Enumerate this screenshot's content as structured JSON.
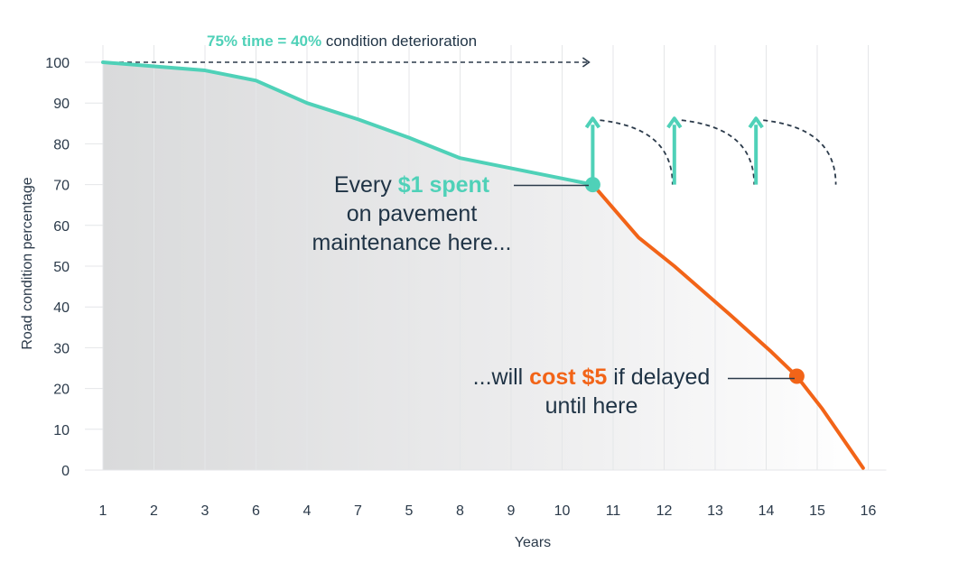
{
  "chart_data": {
    "type": "line",
    "title": "",
    "xlabel": "Years",
    "ylabel": "Road condition percentage",
    "x_tick_labels": [
      "1",
      "2",
      "3",
      "6",
      "4",
      "7",
      "5",
      "8",
      "9",
      "10",
      "11",
      "12",
      "13",
      "14",
      "15",
      "16"
    ],
    "y_ticks": [
      0,
      10,
      20,
      30,
      40,
      50,
      60,
      70,
      80,
      90,
      100
    ],
    "ylim": [
      0,
      100
    ],
    "grid": "vertical",
    "series": [
      {
        "color": "#4fd1b8",
        "points": [
          [
            1,
            100
          ],
          [
            3,
            98
          ],
          [
            4,
            95.5
          ],
          [
            5,
            90
          ],
          [
            6,
            86
          ],
          [
            7,
            81.5
          ],
          [
            8,
            76.5
          ],
          [
            10.6,
            70
          ]
        ]
      },
      {
        "color": "#f26418",
        "points": [
          [
            10.6,
            70
          ],
          [
            11.5,
            57
          ],
          [
            12.2,
            50
          ],
          [
            13.3,
            38
          ],
          [
            14.1,
            29
          ],
          [
            14.6,
            23
          ],
          [
            15.1,
            15
          ],
          [
            15.9,
            0.5
          ]
        ]
      }
    ],
    "markers": [
      {
        "x": 10.6,
        "y": 70,
        "color": "#4fd1b8"
      },
      {
        "x": 14.6,
        "y": 23,
        "color": "#f26418"
      }
    ],
    "top_annotation": {
      "part1": "75% time = 40%",
      "part2": " condition deterioration",
      "highlight_color": "#4fd1b8"
    },
    "annotation_spend": {
      "line1_prefix": "Every ",
      "line1_highlight": "$1 spent",
      "line2": "on pavement",
      "line3": "maintenance here...",
      "highlight_color": "#4fd1b8"
    },
    "annotation_delay": {
      "line1_prefix": "...will ",
      "line1_highlight": "cost $5",
      "line1_suffix": " if delayed",
      "line2": "until here",
      "highlight_color": "#f26418"
    },
    "maintenance_arrows": {
      "x_positions": [
        10.6,
        12.2,
        13.8
      ],
      "from_y": 70,
      "to_y": 86,
      "color": "#4fd1b8"
    },
    "colors": {
      "teal": "#4fd1b8",
      "orange": "#f26418",
      "dark_text": "#1f3345",
      "grid": "#e4e6e8"
    }
  }
}
